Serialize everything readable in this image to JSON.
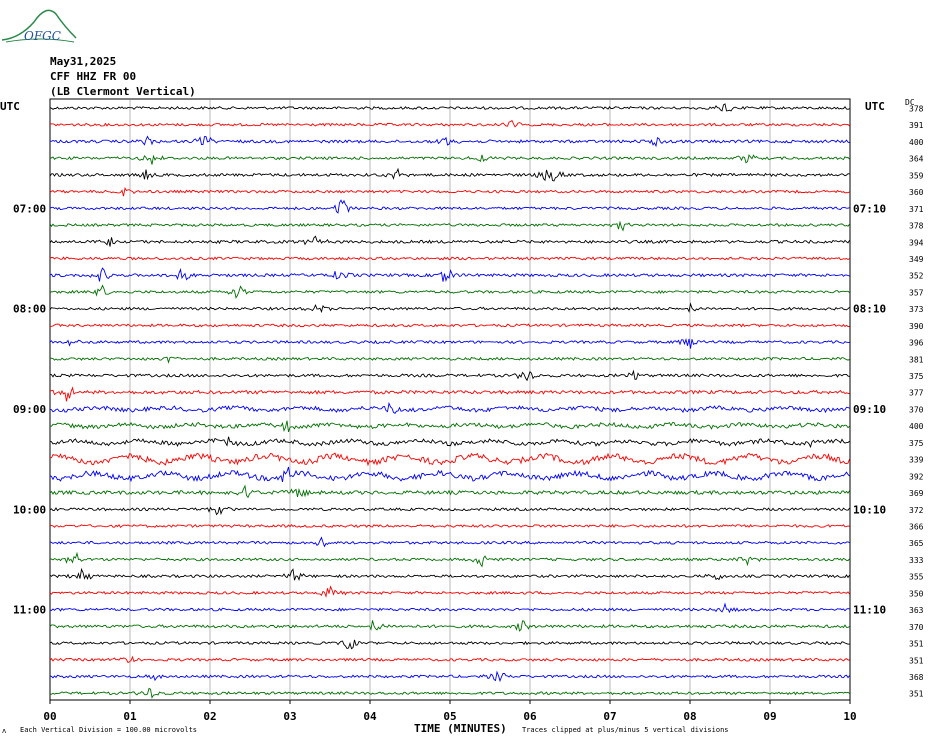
{
  "header": {
    "logo_text": "OFGC",
    "date": "May31,2025",
    "station": "CFF HHZ FR 00",
    "location": "(LB  Clermont Vertical)"
  },
  "left_axis_title": "UTC",
  "right_axis_title": "UTC",
  "dc_header": "DC",
  "footer": {
    "scale_note": "Each Vertical Division =  100.00 microvolts",
    "xlabel": "TIME (MINUTES)",
    "clip_note": "Traces clipped at plus/minus 5 vertical divisions",
    "corner_mark": "ʌ"
  },
  "colors": {
    "cycle": [
      "#000000",
      "#ff0000",
      "#0000ff",
      "#007000"
    ],
    "grid": "#888888"
  },
  "chart_data": {
    "type": "line",
    "title": "",
    "xlabel": "TIME (MINUTES)",
    "ylabel": "",
    "xlim": [
      0,
      10
    ],
    "x_ticks": [
      "00",
      "01",
      "02",
      "03",
      "04",
      "05",
      "06",
      "07",
      "08",
      "09",
      "10"
    ],
    "grid": true,
    "trace_count": 36,
    "left_time_labels": [
      {
        "trace": 6,
        "label": "07:00"
      },
      {
        "trace": 12,
        "label": "08:00"
      },
      {
        "trace": 18,
        "label": "09:00"
      },
      {
        "trace": 24,
        "label": "10:00"
      },
      {
        "trace": 30,
        "label": "11:00"
      }
    ],
    "right_time_labels": [
      {
        "trace": 6,
        "label": "07:10"
      },
      {
        "trace": 12,
        "label": "08:10"
      },
      {
        "trace": 18,
        "label": "09:10"
      },
      {
        "trace": 24,
        "label": "10:10"
      },
      {
        "trace": 30,
        "label": "11:10"
      }
    ],
    "dc_offsets": [
      "378",
      "391",
      "400",
      "364",
      "359",
      "360",
      "371",
      "378",
      "394",
      "349",
      "352",
      "357",
      "373",
      "390",
      "396",
      "381",
      "375",
      "377",
      "370",
      "400",
      "375",
      "339",
      "392",
      "369",
      "372",
      "366",
      "365",
      "333",
      "355",
      "350",
      "363",
      "370",
      "351",
      "351",
      "368",
      "351"
    ],
    "amplitude": [
      1.0,
      1.0,
      1.1,
      1.0,
      1.1,
      1.0,
      1.0,
      1.0,
      1.1,
      1.0,
      1.1,
      1.0,
      1.0,
      1.0,
      1.0,
      1.0,
      1.1,
      1.3,
      1.5,
      1.5,
      1.6,
      2.2,
      2.0,
      1.4,
      1.0,
      1.0,
      1.0,
      1.0,
      1.0,
      1.0,
      1.0,
      1.1,
      1.0,
      1.0,
      1.0,
      1.0
    ],
    "events": [
      {
        "trace": 0,
        "minute": 8.45,
        "amp": 8
      },
      {
        "trace": 1,
        "minute": 5.8,
        "amp": 6
      },
      {
        "trace": 2,
        "minute": 1.2,
        "amp": 7
      },
      {
        "trace": 2,
        "minute": 1.95,
        "amp": 8
      },
      {
        "trace": 2,
        "minute": 4.95,
        "amp": 6
      },
      {
        "trace": 2,
        "minute": 7.6,
        "amp": 6
      },
      {
        "trace": 3,
        "minute": 1.25,
        "amp": 9
      },
      {
        "trace": 3,
        "minute": 5.4,
        "amp": 6
      },
      {
        "trace": 3,
        "minute": 8.7,
        "amp": 7
      },
      {
        "trace": 4,
        "minute": 1.2,
        "amp": 7
      },
      {
        "trace": 4,
        "minute": 4.35,
        "amp": 7
      },
      {
        "trace": 4,
        "minute": 6.25,
        "amp": 12
      },
      {
        "trace": 5,
        "minute": 0.9,
        "amp": 6
      },
      {
        "trace": 6,
        "minute": 3.65,
        "amp": 12
      },
      {
        "trace": 7,
        "minute": 7.15,
        "amp": 7
      },
      {
        "trace": 8,
        "minute": 0.75,
        "amp": 6
      },
      {
        "trace": 8,
        "minute": 3.3,
        "amp": 7
      },
      {
        "trace": 10,
        "minute": 0.65,
        "amp": 8
      },
      {
        "trace": 10,
        "minute": 1.65,
        "amp": 7
      },
      {
        "trace": 10,
        "minute": 3.6,
        "amp": 7
      },
      {
        "trace": 10,
        "minute": 4.95,
        "amp": 10
      },
      {
        "trace": 11,
        "minute": 0.65,
        "amp": 7
      },
      {
        "trace": 11,
        "minute": 2.35,
        "amp": 9
      },
      {
        "trace": 12,
        "minute": 3.35,
        "amp": 6
      },
      {
        "trace": 12,
        "minute": 8.0,
        "amp": 6
      },
      {
        "trace": 14,
        "minute": 0.3,
        "amp": 6
      },
      {
        "trace": 14,
        "minute": 8.0,
        "amp": 10
      },
      {
        "trace": 15,
        "minute": 1.5,
        "amp": 6
      },
      {
        "trace": 16,
        "minute": 5.95,
        "amp": 9
      },
      {
        "trace": 16,
        "minute": 7.3,
        "amp": 6
      },
      {
        "trace": 17,
        "minute": 0.2,
        "amp": 10
      },
      {
        "trace": 18,
        "minute": 4.25,
        "amp": 6
      },
      {
        "trace": 19,
        "minute": 2.95,
        "amp": 6
      },
      {
        "trace": 20,
        "minute": 2.2,
        "amp": 6
      },
      {
        "trace": 20,
        "minute": 9.5,
        "amp": 6
      },
      {
        "trace": 22,
        "minute": 2.95,
        "amp": 12
      },
      {
        "trace": 23,
        "minute": 2.45,
        "amp": 8
      },
      {
        "trace": 23,
        "minute": 3.1,
        "amp": 10
      },
      {
        "trace": 24,
        "minute": 2.1,
        "amp": 6
      },
      {
        "trace": 26,
        "minute": 3.4,
        "amp": 6
      },
      {
        "trace": 27,
        "minute": 0.3,
        "amp": 9
      },
      {
        "trace": 27,
        "minute": 5.4,
        "amp": 8
      },
      {
        "trace": 27,
        "minute": 8.7,
        "amp": 7
      },
      {
        "trace": 28,
        "minute": 0.4,
        "amp": 9
      },
      {
        "trace": 28,
        "minute": 3.05,
        "amp": 9
      },
      {
        "trace": 28,
        "minute": 8.35,
        "amp": 7
      },
      {
        "trace": 29,
        "minute": 3.5,
        "amp": 8
      },
      {
        "trace": 30,
        "minute": 8.45,
        "amp": 6
      },
      {
        "trace": 31,
        "minute": 4.05,
        "amp": 9
      },
      {
        "trace": 31,
        "minute": 5.9,
        "amp": 6
      },
      {
        "trace": 32,
        "minute": 3.75,
        "amp": 10
      },
      {
        "trace": 33,
        "minute": 0.95,
        "amp": 7
      },
      {
        "trace": 34,
        "minute": 1.3,
        "amp": 6
      },
      {
        "trace": 34,
        "minute": 5.6,
        "amp": 7
      },
      {
        "trace": 35,
        "minute": 1.25,
        "amp": 7
      }
    ]
  }
}
